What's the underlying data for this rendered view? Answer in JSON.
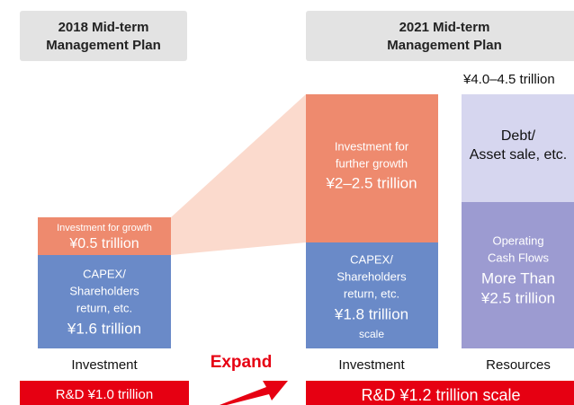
{
  "headers": {
    "left": [
      "2018 Mid-term",
      "Management Plan"
    ],
    "right": [
      "2021 Mid-term",
      "Management Plan"
    ]
  },
  "total": "¥4.0–4.5 trillion",
  "left_column": {
    "growth": {
      "label": "Investment for growth",
      "amount": "¥0.5 trillion"
    },
    "capex": {
      "label": [
        "CAPEX/",
        "Shareholders",
        "return, etc."
      ],
      "amount": "¥1.6 trillion"
    },
    "caption": "Investment"
  },
  "middle_column": {
    "growth": {
      "label": [
        "Investment for",
        "further growth"
      ],
      "amount": "¥2–2.5 trillion"
    },
    "capex": {
      "label": [
        "CAPEX/",
        "Shareholders",
        "return, etc."
      ],
      "amount": "¥1.8 trillion",
      "suffix": "scale"
    },
    "caption": "Investment"
  },
  "right_column": {
    "debt": [
      "Debt/",
      "Asset sale, etc."
    ],
    "cash": {
      "label": [
        "Operating",
        "Cash Flows"
      ],
      "amount": [
        "More Than",
        "¥2.5 trillion"
      ]
    },
    "caption": "Resources"
  },
  "expand": "Expand",
  "rd": {
    "left": "R&D ¥1.0 trillion",
    "right": "R&D ¥1.2 trillion scale"
  }
}
